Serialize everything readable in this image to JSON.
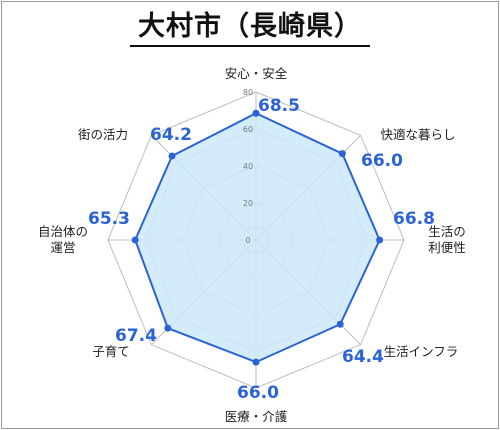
{
  "title": "大村市（長崎県）",
  "chart_data": {
    "type": "radar",
    "title": "大村市（長崎県）",
    "rmin": 0,
    "rmax": 80,
    "ticks": [
      0,
      20,
      40,
      60,
      80
    ],
    "grid": true,
    "axes": [
      {
        "label": [
          "安心・安全"
        ],
        "value": 68.5
      },
      {
        "label": [
          "快適な暮らし"
        ],
        "value": 66.0
      },
      {
        "label": [
          "生活の",
          "利便性"
        ],
        "value": 66.8
      },
      {
        "label": [
          "生活インフラ"
        ],
        "value": 64.4
      },
      {
        "label": [
          "医療・介護"
        ],
        "value": 66.0
      },
      {
        "label": [
          "子育て"
        ],
        "value": 67.4
      },
      {
        "label": [
          "自治体の",
          "運営"
        ],
        "value": 65.3
      },
      {
        "label": [
          "街の活力"
        ],
        "value": 64.2
      }
    ],
    "value_labels": [
      "68.5",
      "66.0",
      "66.8",
      "64.4",
      "66.0",
      "67.4",
      "65.3",
      "64.2"
    ],
    "colors": {
      "fill": "#cde9f9",
      "stroke": "#2b62d6",
      "grid": "#bdbdbd"
    }
  }
}
